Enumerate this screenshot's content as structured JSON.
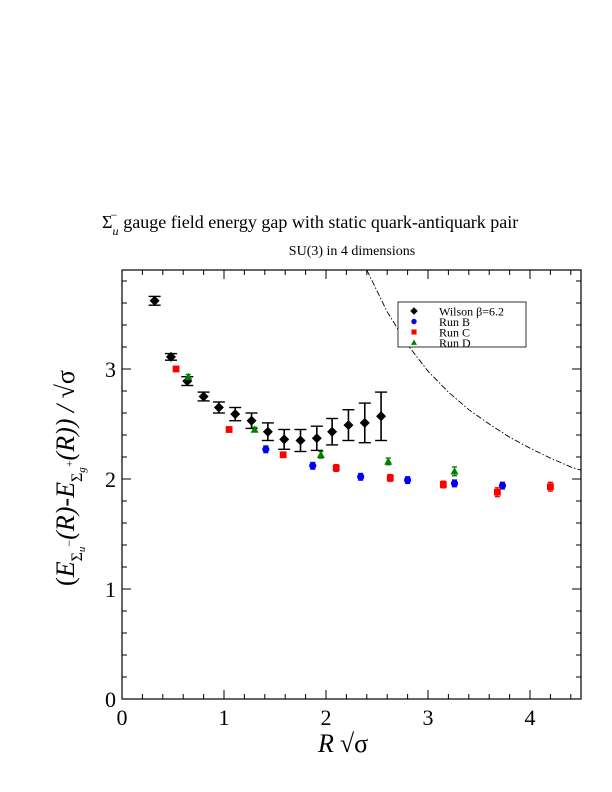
{
  "chart_data": {
    "type": "scatter",
    "title_symbol": "Σ",
    "title_sub": "u",
    "title_sup": "−",
    "title_text": "gauge field energy gap with static quark-antiquark pair",
    "subtitle": "SU(3) in 4 dimensions",
    "xlabel_main": "R",
    "xlabel_sqrt": "√σ",
    "ylabel": "(E_{Σu−}(R)-E_{Σg+}(R)) / √σ",
    "ylabel_parts": {
      "open": "(",
      "E1": "E",
      "sub1_main": "Σ",
      "sub1_sub": "u",
      "sub1_sup": "−",
      "mid": "(R)-",
      "E2": "E",
      "sub2_main": "Σ",
      "sub2_sub": "g",
      "sub2_sup": "+",
      "close": "(R)) / ",
      "sqrt": "√σ"
    },
    "xlim": [
      0,
      4.5
    ],
    "ylim": [
      0,
      3.9
    ],
    "xticks": [
      0,
      1,
      2,
      3,
      4
    ],
    "yticks": [
      0,
      1,
      2,
      3
    ],
    "xtick_labels": [
      "0",
      "1",
      "2",
      "3",
      "4"
    ],
    "ytick_labels": [
      "0",
      "1",
      "2",
      "3"
    ],
    "legend_position": "top-right",
    "series": [
      {
        "name": "Wilson β=6.2",
        "marker": "diamond",
        "color": "#000000",
        "points": [
          {
            "x": 0.32,
            "y": 3.62,
            "err": 0.04
          },
          {
            "x": 0.48,
            "y": 3.11,
            "err": 0.03
          },
          {
            "x": 0.64,
            "y": 2.89,
            "err": 0.04
          },
          {
            "x": 0.8,
            "y": 2.75,
            "err": 0.04
          },
          {
            "x": 0.95,
            "y": 2.65,
            "err": 0.05
          },
          {
            "x": 1.11,
            "y": 2.59,
            "err": 0.06
          },
          {
            "x": 1.27,
            "y": 2.53,
            "err": 0.07
          },
          {
            "x": 1.43,
            "y": 2.43,
            "err": 0.08
          },
          {
            "x": 1.59,
            "y": 2.36,
            "err": 0.09
          },
          {
            "x": 1.75,
            "y": 2.35,
            "err": 0.1
          },
          {
            "x": 1.91,
            "y": 2.37,
            "err": 0.11
          },
          {
            "x": 2.06,
            "y": 2.43,
            "err": 0.12
          },
          {
            "x": 2.22,
            "y": 2.49,
            "err": 0.14
          },
          {
            "x": 2.38,
            "y": 2.51,
            "err": 0.18
          },
          {
            "x": 2.54,
            "y": 2.57,
            "err": 0.22
          }
        ]
      },
      {
        "name": "Run B",
        "marker": "circle",
        "color": "#0000ff",
        "points": [
          {
            "x": 1.41,
            "y": 2.27,
            "err": 0.03
          },
          {
            "x": 1.87,
            "y": 2.12,
            "err": 0.03
          },
          {
            "x": 2.34,
            "y": 2.02,
            "err": 0.03
          },
          {
            "x": 2.8,
            "y": 1.99,
            "err": 0.03
          },
          {
            "x": 3.26,
            "y": 1.96,
            "err": 0.03
          },
          {
            "x": 3.73,
            "y": 1.94,
            "err": 0.03
          }
        ]
      },
      {
        "name": "Run C",
        "marker": "square",
        "color": "#ff0000",
        "points": [
          {
            "x": 0.53,
            "y": 3.0,
            "err": 0.02
          },
          {
            "x": 1.05,
            "y": 2.45,
            "err": 0.02
          },
          {
            "x": 1.58,
            "y": 2.22,
            "err": 0.02
          },
          {
            "x": 2.1,
            "y": 2.1,
            "err": 0.03
          },
          {
            "x": 2.63,
            "y": 2.01,
            "err": 0.03
          },
          {
            "x": 3.15,
            "y": 1.95,
            "err": 0.03
          },
          {
            "x": 3.68,
            "y": 1.88,
            "err": 0.04
          },
          {
            "x": 4.2,
            "y": 1.93,
            "err": 0.04
          }
        ]
      },
      {
        "name": "Run D",
        "marker": "triangle",
        "color": "#008000",
        "points": [
          {
            "x": 0.65,
            "y": 2.93,
            "err": 0.02
          },
          {
            "x": 1.3,
            "y": 2.45,
            "err": 0.02
          },
          {
            "x": 1.95,
            "y": 2.22,
            "err": 0.03
          },
          {
            "x": 2.61,
            "y": 2.16,
            "err": 0.03
          },
          {
            "x": 3.26,
            "y": 2.07,
            "err": 0.04
          }
        ]
      }
    ],
    "reference_curve": {
      "style": "dash-dot",
      "color": "#000000",
      "x": [
        2.4,
        2.6,
        2.8,
        3.0,
        3.2,
        3.4,
        3.6,
        3.8,
        4.0,
        4.2,
        4.4,
        4.5
      ],
      "y": [
        3.9,
        3.52,
        3.22,
        2.98,
        2.79,
        2.63,
        2.5,
        2.38,
        2.28,
        2.19,
        2.11,
        2.08
      ]
    }
  }
}
